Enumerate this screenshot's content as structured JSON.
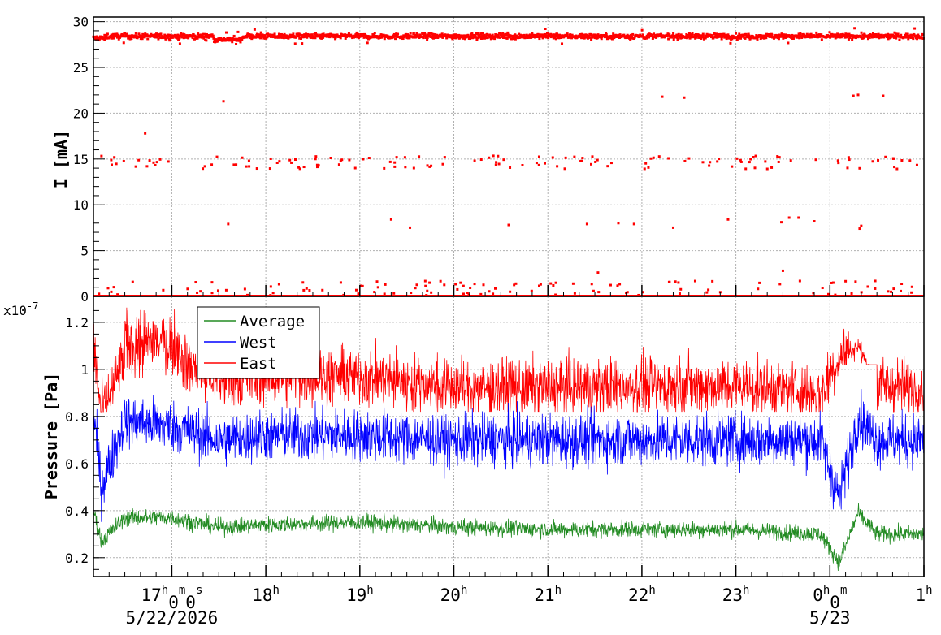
{
  "chart_data": [
    {
      "type": "scatter",
      "ylabel": "I [mA]",
      "ylim": [
        0,
        30.5
      ],
      "yticks": [
        0,
        5,
        10,
        15,
        20,
        25,
        30
      ],
      "grid": true,
      "x_range": [
        "2026-05-22 16:10",
        "2026-05-23 01:00"
      ],
      "series": [
        {
          "color": "#ff0000",
          "baseline_band": {
            "approx_value": 28.4,
            "range": [
              27.5,
              29.3
            ]
          },
          "level_clusters": [
            {
              "approx_value": 0.0,
              "description": "dense points along zero line"
            },
            {
              "approx_value": 1.0,
              "description": "sparse points"
            },
            {
              "approx_value": 14.6,
              "description": "scattered points 13.8-15.3"
            }
          ],
          "outliers": [
            {
              "x": "2026-05-22 16:43",
              "y": 17.8
            },
            {
              "x": "2026-05-22 17:33",
              "y": 21.3
            },
            {
              "x": "2026-05-22 17:36",
              "y": 7.9
            },
            {
              "x": "2026-05-22 19:20",
              "y": 8.4
            },
            {
              "x": "2026-05-22 19:32",
              "y": 7.5
            },
            {
              "x": "2026-05-22 20:35",
              "y": 7.8
            },
            {
              "x": "2026-05-22 21:25",
              "y": 7.9
            },
            {
              "x": "2026-05-22 21:32",
              "y": 2.6
            },
            {
              "x": "2026-05-22 21:45",
              "y": 8.0
            },
            {
              "x": "2026-05-22 21:55",
              "y": 7.9
            },
            {
              "x": "2026-05-22 22:13",
              "y": 21.8
            },
            {
              "x": "2026-05-22 22:20",
              "y": 7.5
            },
            {
              "x": "2026-05-22 22:27",
              "y": 21.7
            },
            {
              "x": "2026-05-22 22:55",
              "y": 8.4
            },
            {
              "x": "2026-05-22 23:29",
              "y": 8.1
            },
            {
              "x": "2026-05-22 23:30",
              "y": 2.8
            },
            {
              "x": "2026-05-22 23:34",
              "y": 8.6
            },
            {
              "x": "2026-05-22 23:40",
              "y": 8.6
            },
            {
              "x": "2026-05-22 23:50",
              "y": 8.2
            },
            {
              "x": "2026-05-23 00:15",
              "y": 21.9
            },
            {
              "x": "2026-05-23 00:18",
              "y": 22.0
            },
            {
              "x": "2026-05-23 00:19",
              "y": 7.4
            },
            {
              "x": "2026-05-23 00:20",
              "y": 7.7
            },
            {
              "x": "2026-05-23 00:34",
              "y": 21.9
            }
          ]
        }
      ]
    },
    {
      "type": "line",
      "ylabel": "Pressure [Pa]",
      "y_exponent": "x10",
      "y_exponent_power": "-7",
      "ylim": [
        0.12,
        1.31
      ],
      "yticks": [
        0.2,
        0.4,
        0.6,
        0.8,
        1.0,
        1.2
      ],
      "ytick_labels": [
        "0.2",
        "0.4",
        "0.6",
        "0.8",
        "1",
        "1.2"
      ],
      "grid": true,
      "legend": {
        "placement": "top-left"
      },
      "series": [
        {
          "name": "Average",
          "color": "#228b22",
          "approx_points": [
            [
              16.17,
              0.4
            ],
            [
              16.25,
              0.27
            ],
            [
              16.5,
              0.37
            ],
            [
              17.0,
              0.37
            ],
            [
              17.5,
              0.33
            ],
            [
              18.0,
              0.34
            ],
            [
              19.0,
              0.35
            ],
            [
              20.0,
              0.33
            ],
            [
              21.0,
              0.32
            ],
            [
              22.0,
              0.32
            ],
            [
              23.0,
              0.32
            ],
            [
              23.9,
              0.3
            ],
            [
              24.1,
              0.18
            ],
            [
              24.3,
              0.39
            ],
            [
              24.5,
              0.3
            ],
            [
              25.0,
              0.3
            ]
          ]
        },
        {
          "name": "West",
          "color": "#0000ff",
          "approx_points": [
            [
              16.17,
              0.8
            ],
            [
              16.25,
              0.5
            ],
            [
              16.5,
              0.78
            ],
            [
              17.0,
              0.76
            ],
            [
              17.5,
              0.7
            ],
            [
              18.0,
              0.72
            ],
            [
              19.0,
              0.72
            ],
            [
              20.0,
              0.7
            ],
            [
              21.0,
              0.7
            ],
            [
              22.0,
              0.7
            ],
            [
              23.0,
              0.7
            ],
            [
              23.9,
              0.7
            ],
            [
              24.1,
              0.45
            ],
            [
              24.3,
              0.8
            ],
            [
              24.5,
              0.7
            ],
            [
              25.0,
              0.7
            ]
          ]
        },
        {
          "name": "East",
          "color": "#ff0000",
          "approx_points": [
            [
              16.17,
              1.1
            ],
            [
              16.25,
              0.8
            ],
            [
              16.5,
              1.05
            ],
            [
              17.0,
              1.05
            ],
            [
              17.5,
              0.95
            ],
            [
              18.0,
              0.97
            ],
            [
              19.0,
              0.97
            ],
            [
              20.0,
              0.92
            ],
            [
              21.0,
              0.92
            ],
            [
              22.0,
              0.93
            ],
            [
              23.0,
              0.93
            ],
            [
              23.9,
              0.9
            ],
            [
              24.1,
              1.05
            ],
            [
              24.3,
              1.1
            ],
            [
              24.5,
              0.93
            ],
            [
              25.0,
              0.92
            ]
          ]
        }
      ]
    }
  ],
  "x_axis": {
    "ticks": [
      {
        "label": "17",
        "sup": "h",
        "sub": "0",
        "sup2": "m",
        "sub2": "0",
        "sup3": "s",
        "date": "5/22/2026"
      },
      {
        "label": "18",
        "sup": "h"
      },
      {
        "label": "19",
        "sup": "h"
      },
      {
        "label": "20",
        "sup": "h"
      },
      {
        "label": "21",
        "sup": "h"
      },
      {
        "label": "22",
        "sup": "h"
      },
      {
        "label": "23",
        "sup": "h"
      },
      {
        "label": "0",
        "sup": "h",
        "sub": "0",
        "sup2": "m",
        "date": "5/23"
      },
      {
        "label": "1",
        "sup": "h"
      }
    ]
  }
}
